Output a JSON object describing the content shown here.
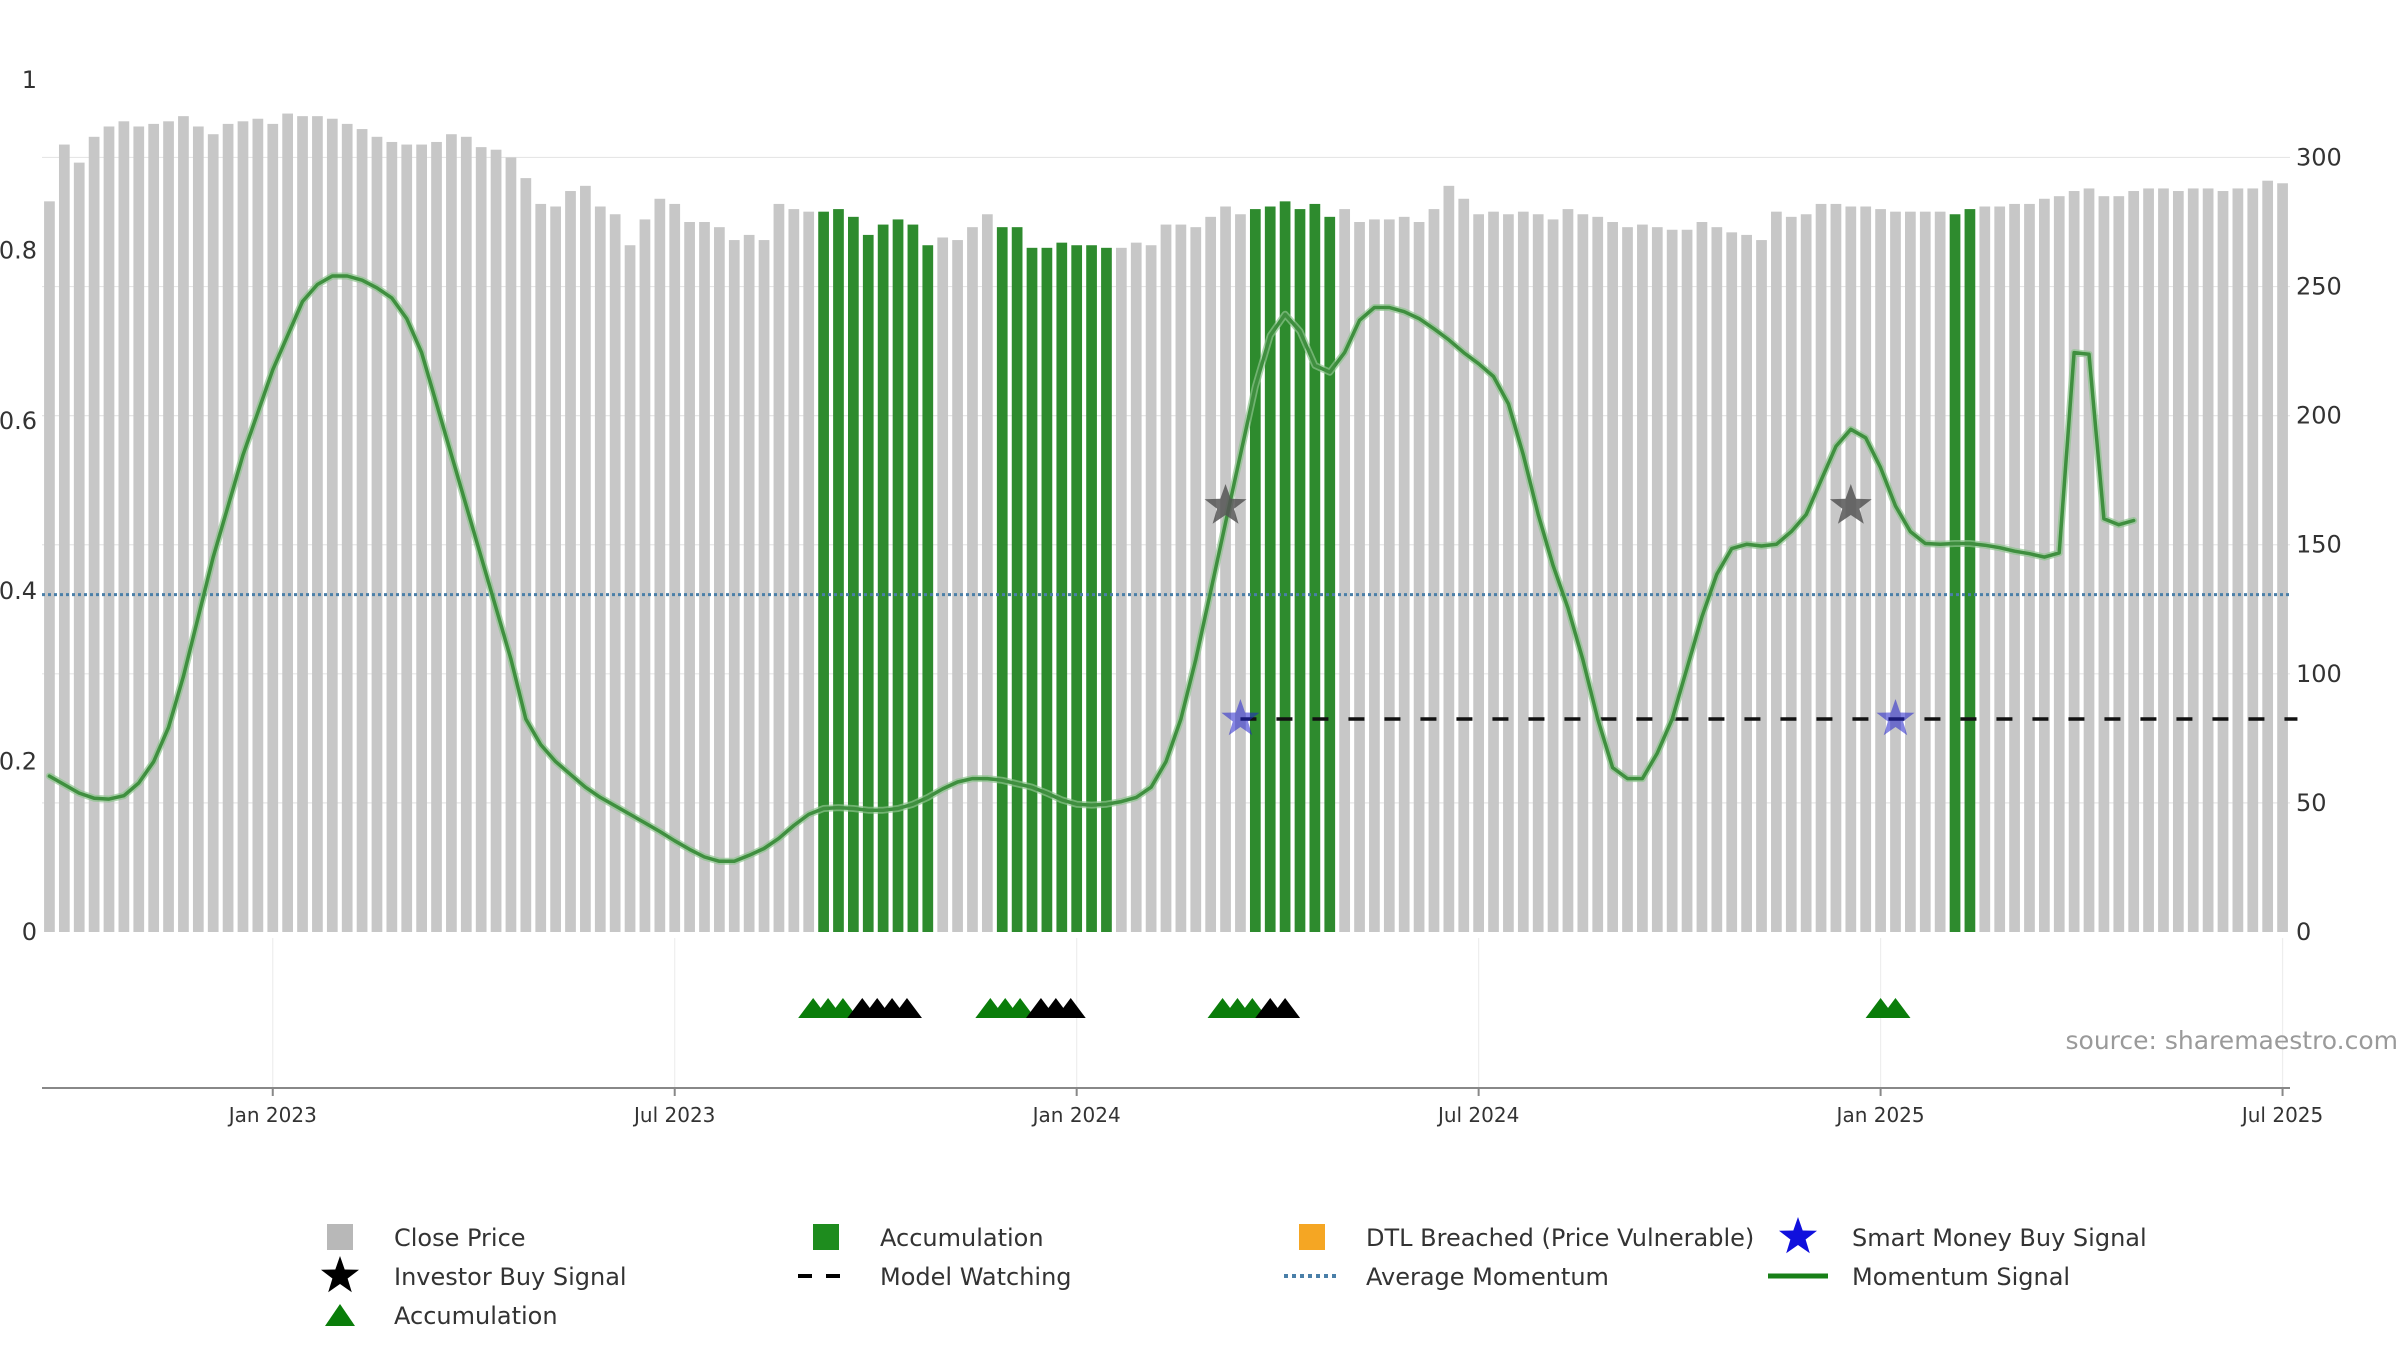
{
  "chart_data": {
    "type": "bar+line",
    "source_text": "source: sharemaestro.com",
    "colors": {
      "close_price": "#c7c7c7",
      "accumulation": "#2e8b2e",
      "momentum": "#3f8f3f",
      "average_momentum": "#4a7fa8",
      "model_watching": "#111111",
      "investor_star": "#555555",
      "smart_money_star": "#2222cc",
      "dtl": "#f5a623",
      "grid": "#e6e6e6",
      "axis": "#888888"
    },
    "left_axis": {
      "min": 0,
      "max": 1,
      "ticks": [
        "0",
        "0.2",
        "0.4",
        "0.6",
        "0.8",
        "1"
      ]
    },
    "right_axis": {
      "min": 0,
      "max": 330,
      "ticks": [
        "0",
        "50",
        "100",
        "150",
        "200",
        "250",
        "300"
      ]
    },
    "x_axis": {
      "ticks": [
        "Jan 2023",
        "Jul 2023",
        "Jan 2024",
        "Jul 2024",
        "Jan 2025",
        "Jul 2025"
      ],
      "tick_index": [
        15,
        42,
        69,
        96,
        123,
        150
      ]
    },
    "price_series": {
      "name": "Close Price",
      "values": [
        283,
        305,
        298,
        308,
        312,
        314,
        312,
        313,
        314,
        316,
        312,
        309,
        313,
        314,
        315,
        313,
        317,
        316,
        316,
        315,
        313,
        311,
        308,
        306,
        305,
        305,
        306,
        309,
        308,
        304,
        303,
        300,
        292,
        282,
        281,
        287,
        289,
        281,
        278,
        266,
        276,
        284,
        282,
        275,
        275,
        273,
        268,
        270,
        268,
        282,
        280,
        279,
        279,
        280,
        277,
        270,
        274,
        276,
        274,
        266,
        269,
        268,
        273,
        278,
        273,
        273,
        265,
        265,
        267,
        266,
        266,
        265,
        265,
        267,
        266,
        274,
        274,
        273,
        277,
        281,
        278,
        280,
        281,
        283,
        280,
        282,
        277,
        280,
        275,
        276,
        276,
        277,
        275,
        280,
        289,
        284,
        278,
        279,
        278,
        279,
        278,
        276,
        280,
        278,
        277,
        275,
        273,
        274,
        273,
        272,
        272,
        275,
        273,
        271,
        270,
        268,
        279,
        277,
        278,
        282,
        282,
        281,
        281,
        280,
        279,
        279,
        279,
        279,
        278,
        280,
        281,
        281,
        282,
        282,
        284,
        285,
        287,
        288,
        285,
        285,
        287,
        288,
        288,
        287,
        288,
        288,
        287,
        288,
        288,
        291,
        290
      ],
      "accumulation_index": [
        52,
        53,
        54,
        55,
        56,
        57,
        58,
        59,
        64,
        65,
        66,
        67,
        68,
        69,
        70,
        71,
        81,
        82,
        83,
        84,
        85,
        86,
        128,
        129
      ]
    },
    "momentum_series": {
      "name": "Momentum Signal",
      "points": [
        [
          0,
          0.183
        ],
        [
          1,
          0.173
        ],
        [
          2,
          0.163
        ],
        [
          3,
          0.157
        ],
        [
          4,
          0.156
        ],
        [
          5,
          0.16
        ],
        [
          6,
          0.175
        ],
        [
          7,
          0.2
        ],
        [
          8,
          0.24
        ],
        [
          9,
          0.3
        ],
        [
          10,
          0.37
        ],
        [
          11,
          0.44
        ],
        [
          12,
          0.5
        ],
        [
          13,
          0.56
        ],
        [
          14,
          0.61
        ],
        [
          15,
          0.66
        ],
        [
          16,
          0.7
        ],
        [
          17,
          0.74
        ],
        [
          18,
          0.76
        ],
        [
          19,
          0.77
        ],
        [
          20,
          0.77
        ],
        [
          21,
          0.765
        ],
        [
          22,
          0.756
        ],
        [
          23,
          0.744
        ],
        [
          24,
          0.72
        ],
        [
          25,
          0.68
        ],
        [
          26,
          0.62
        ],
        [
          27,
          0.56
        ],
        [
          28,
          0.5
        ],
        [
          29,
          0.44
        ],
        [
          30,
          0.38
        ],
        [
          31,
          0.32
        ],
        [
          32,
          0.25
        ],
        [
          33,
          0.22
        ],
        [
          34,
          0.2
        ],
        [
          35,
          0.185
        ],
        [
          36,
          0.17
        ],
        [
          37,
          0.158
        ],
        [
          38,
          0.148
        ],
        [
          39,
          0.138
        ],
        [
          40,
          0.128
        ],
        [
          41,
          0.118
        ],
        [
          42,
          0.107
        ],
        [
          43,
          0.097
        ],
        [
          44,
          0.088
        ],
        [
          45,
          0.083
        ],
        [
          46,
          0.083
        ],
        [
          47,
          0.09
        ],
        [
          48,
          0.098
        ],
        [
          49,
          0.11
        ],
        [
          50,
          0.125
        ],
        [
          51,
          0.138
        ],
        [
          52,
          0.145
        ],
        [
          53,
          0.146
        ],
        [
          54,
          0.145
        ],
        [
          55,
          0.143
        ],
        [
          56,
          0.143
        ],
        [
          57,
          0.145
        ],
        [
          58,
          0.15
        ],
        [
          59,
          0.158
        ],
        [
          60,
          0.168
        ],
        [
          61,
          0.176
        ],
        [
          62,
          0.18
        ],
        [
          63,
          0.18
        ],
        [
          64,
          0.178
        ],
        [
          65,
          0.174
        ],
        [
          66,
          0.17
        ],
        [
          67,
          0.163
        ],
        [
          68,
          0.155
        ],
        [
          69,
          0.15
        ],
        [
          70,
          0.149
        ],
        [
          71,
          0.15
        ],
        [
          72,
          0.153
        ],
        [
          73,
          0.158
        ],
        [
          74,
          0.17
        ],
        [
          75,
          0.2
        ],
        [
          76,
          0.25
        ],
        [
          77,
          0.32
        ],
        [
          78,
          0.4
        ],
        [
          79,
          0.48
        ],
        [
          80,
          0.56
        ],
        [
          81,
          0.64
        ],
        [
          82,
          0.7
        ],
        [
          83,
          0.725
        ],
        [
          84,
          0.705
        ],
        [
          85,
          0.665
        ],
        [
          86,
          0.657
        ],
        [
          87,
          0.68
        ],
        [
          88,
          0.718
        ],
        [
          89,
          0.733
        ],
        [
          90,
          0.733
        ],
        [
          91,
          0.728
        ],
        [
          92,
          0.72
        ],
        [
          93,
          0.708
        ],
        [
          94,
          0.695
        ],
        [
          95,
          0.68
        ],
        [
          96,
          0.667
        ],
        [
          97,
          0.652
        ],
        [
          98,
          0.62
        ],
        [
          99,
          0.56
        ],
        [
          100,
          0.49
        ],
        [
          101,
          0.43
        ],
        [
          102,
          0.38
        ],
        [
          103,
          0.32
        ],
        [
          104,
          0.25
        ],
        [
          105,
          0.193
        ],
        [
          106,
          0.18
        ],
        [
          107,
          0.18
        ],
        [
          108,
          0.21
        ],
        [
          109,
          0.25
        ],
        [
          110,
          0.31
        ],
        [
          111,
          0.37
        ],
        [
          112,
          0.42
        ],
        [
          113,
          0.45
        ],
        [
          114,
          0.455
        ],
        [
          115,
          0.453
        ],
        [
          116,
          0.455
        ],
        [
          117,
          0.47
        ],
        [
          118,
          0.49
        ],
        [
          119,
          0.53
        ],
        [
          120,
          0.57
        ],
        [
          121,
          0.59
        ],
        [
          122,
          0.58
        ],
        [
          123,
          0.545
        ],
        [
          124,
          0.5
        ],
        [
          125,
          0.47
        ],
        [
          126,
          0.456
        ],
        [
          127,
          0.455
        ],
        [
          128,
          0.456
        ],
        [
          129,
          0.456
        ],
        [
          130,
          0.454
        ],
        [
          131,
          0.451
        ],
        [
          132,
          0.447
        ],
        [
          133,
          0.444
        ],
        [
          134,
          0.44
        ],
        [
          135,
          0.445
        ],
        [
          136,
          0.68
        ],
        [
          137,
          0.678
        ],
        [
          138,
          0.485
        ],
        [
          139,
          0.478
        ],
        [
          140,
          0.483
        ]
      ]
    },
    "average_momentum": {
      "name": "Average Momentum",
      "value": 0.396
    },
    "model_watching": {
      "name": "Model Watching",
      "value": 0.25,
      "from_index": 80,
      "to_index": 151
    },
    "investor_buy_signals": [
      {
        "index": 79,
        "value": 0.5
      },
      {
        "index": 121,
        "value": 0.5
      }
    ],
    "smart_money_buy_signals": [
      {
        "index": 80,
        "value": 0.25
      },
      {
        "index": 124,
        "value": 0.25
      }
    ],
    "accumulation_markers": [
      {
        "index": 51.3,
        "color": "green"
      },
      {
        "index": 52.3,
        "color": "green"
      },
      {
        "index": 53.3,
        "color": "green"
      },
      {
        "index": 54.6,
        "color": "black"
      },
      {
        "index": 55.6,
        "color": "black"
      },
      {
        "index": 56.6,
        "color": "black"
      },
      {
        "index": 57.6,
        "color": "black"
      },
      {
        "index": 63.2,
        "color": "green"
      },
      {
        "index": 64.2,
        "color": "green"
      },
      {
        "index": 65.2,
        "color": "green"
      },
      {
        "index": 66.6,
        "color": "black"
      },
      {
        "index": 67.6,
        "color": "black"
      },
      {
        "index": 68.6,
        "color": "black"
      },
      {
        "index": 78.8,
        "color": "green"
      },
      {
        "index": 79.8,
        "color": "green"
      },
      {
        "index": 80.8,
        "color": "green"
      },
      {
        "index": 82.0,
        "color": "black"
      },
      {
        "index": 83.0,
        "color": "black"
      },
      {
        "index": 123.0,
        "color": "green"
      },
      {
        "index": 124.0,
        "color": "green"
      }
    ],
    "legend": [
      {
        "label": "Close Price",
        "symbol": "square-gray"
      },
      {
        "label": "Accumulation",
        "symbol": "square-green"
      },
      {
        "label": "DTL Breached (Price Vulnerable)",
        "symbol": "square-orange"
      },
      {
        "label": "Smart Money Buy Signal",
        "symbol": "star-blue"
      },
      {
        "label": "Investor Buy Signal",
        "symbol": "star-black"
      },
      {
        "label": "Model Watching",
        "symbol": "dash-black"
      },
      {
        "label": "Average Momentum",
        "symbol": "dot-blue"
      },
      {
        "label": "Momentum Signal",
        "symbol": "line-green"
      },
      {
        "label": "Accumulation",
        "symbol": "triangle-green"
      }
    ]
  }
}
